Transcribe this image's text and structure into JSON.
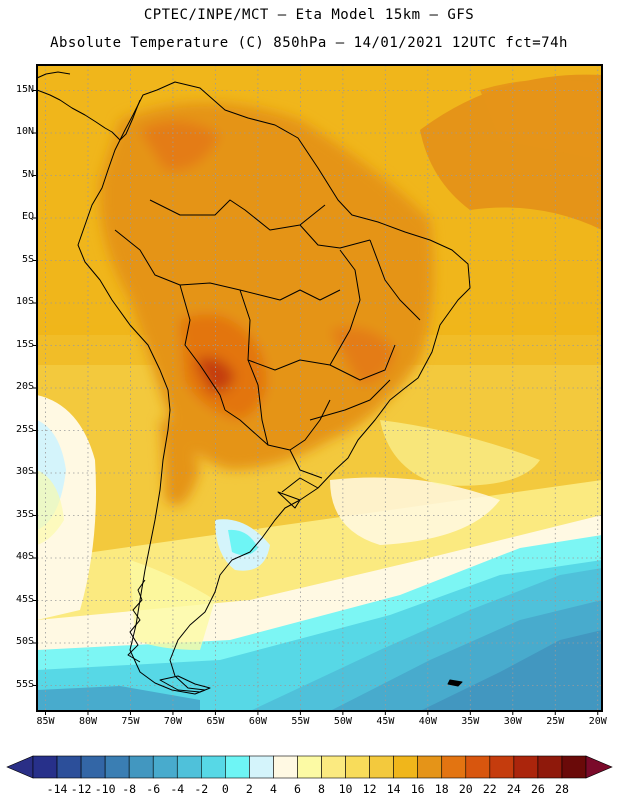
{
  "header": {
    "line1": "CPTEC/INPE/MCT —  Eta Model 15km — GFS",
    "line2": "Absolute Temperature (C) 850hPa — 14/01/2021 12UTC fct=74h"
  },
  "map": {
    "lat_labels": [
      "15N",
      "10N",
      "5N",
      "EQ",
      "5S",
      "10S",
      "15S",
      "20S",
      "25S",
      "30S",
      "35S",
      "40S",
      "45S",
      "50S",
      "55S"
    ],
    "lon_labels": [
      "85W",
      "80W",
      "75W",
      "70W",
      "65W",
      "60W",
      "55W",
      "50W",
      "45W",
      "40W",
      "35W",
      "30W",
      "25W",
      "20W"
    ]
  },
  "colorbar": {
    "labels": [
      "-14",
      "-12",
      "-10",
      "-8",
      "-6",
      "-4",
      "-2",
      "0",
      "2",
      "4",
      "6",
      "8",
      "10",
      "12",
      "14",
      "16",
      "18",
      "20",
      "22",
      "24",
      "26",
      "28"
    ],
    "colors": [
      "#27308a",
      "#2c4f9a",
      "#3366a6",
      "#3a7eb3",
      "#4297c0",
      "#48abcd",
      "#4fc1da",
      "#57d8e6",
      "#6ef5f5",
      "#d4f4fb",
      "#fff9e3",
      "#fcfaa4",
      "#fbea80",
      "#f8dc5a",
      "#f3c93d",
      "#f0b61b",
      "#e59418",
      "#e37411",
      "#d8560e",
      "#c53c0d",
      "#ab250c",
      "#8f190b",
      "#6a0a09"
    ]
  }
}
